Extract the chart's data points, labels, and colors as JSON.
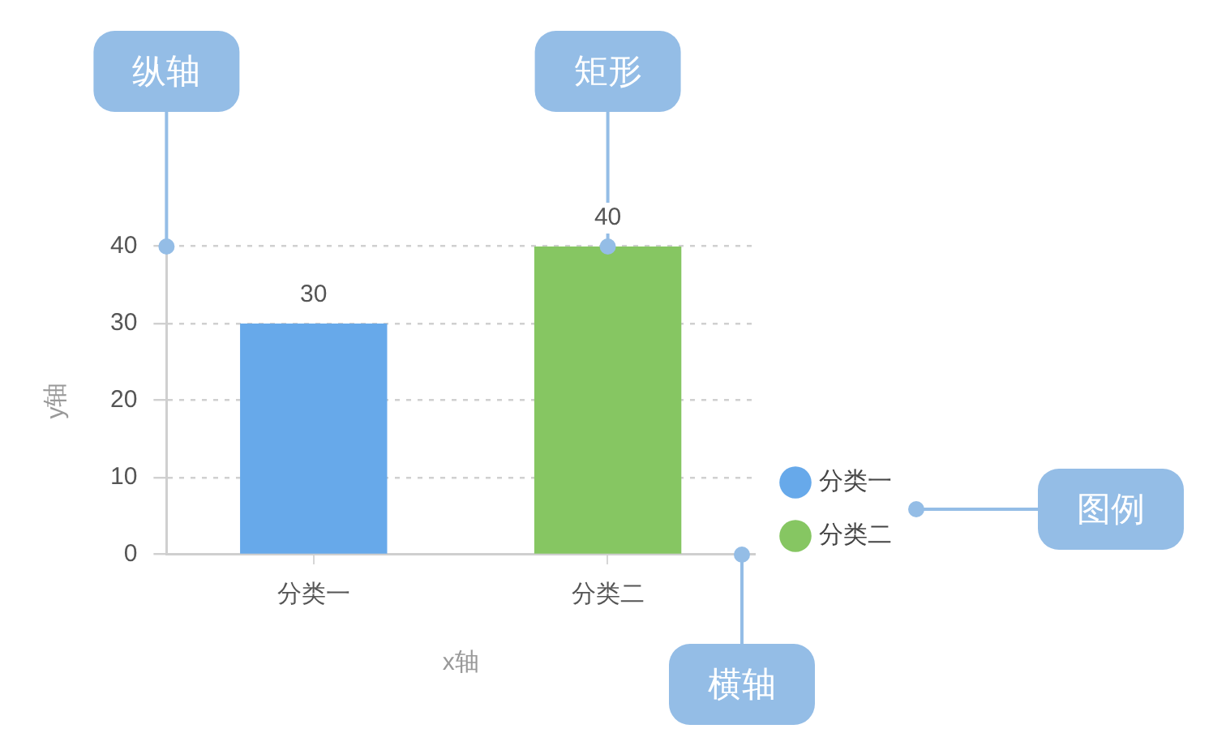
{
  "chart_data": {
    "type": "bar",
    "categories": [
      "分类一",
      "分类二"
    ],
    "series": [
      {
        "name": "分类一",
        "color": "#67a9ea",
        "values": [
          30,
          null
        ]
      },
      {
        "name": "分类二",
        "color": "#86c662",
        "values": [
          null,
          40
        ]
      }
    ],
    "xlabel": "x轴",
    "ylabel": "y轴",
    "ylim": [
      0,
      40
    ],
    "yticks": [
      0,
      10,
      20,
      30,
      40
    ],
    "grid": "y",
    "legend": "right",
    "data_labels": true,
    "annotations": [
      "纵轴",
      {
        "text": "矩形",
        "x": "分类二",
        "y": 40
      },
      "图例",
      "横轴"
    ]
  }
}
